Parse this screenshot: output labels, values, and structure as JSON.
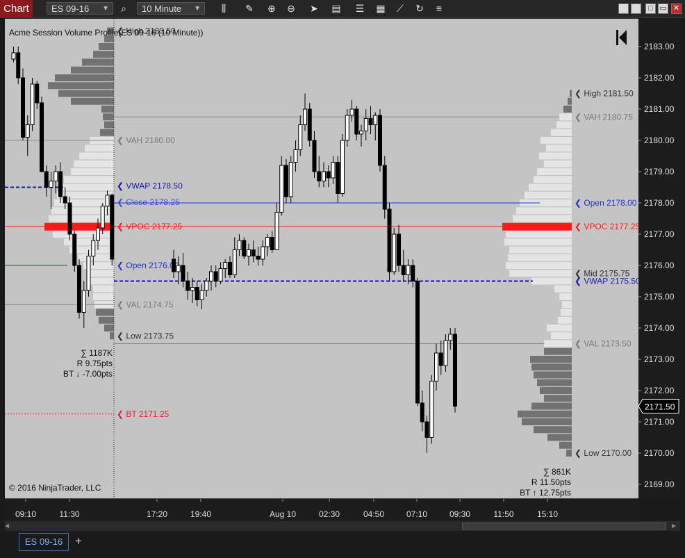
{
  "window": {
    "title": "Chart"
  },
  "toolbar": {
    "instrument": "ES 09-16",
    "interval": "10 Minute",
    "icons": [
      "search-icon",
      "bar-style-icon",
      "pencil-icon",
      "zoom-in-icon",
      "zoom-out-icon",
      "pointer-icon",
      "data-box-icon",
      "properties-icon",
      "strategies-icon",
      "chart-trader-icon",
      "reload-icon",
      "menu-icon"
    ],
    "window_buttons": [
      "minimize",
      "restore",
      "maximize",
      "close"
    ]
  },
  "chart": {
    "indicator_label": "Acme Session Volume Profile(ES 09-16 (10 Minute))",
    "copyright": "© 2016 NinjaTrader, LLC",
    "current_price": "2171.50",
    "colors": {
      "vpoc": "#ff1a1a",
      "vwap": "#1a1aa6",
      "open": "#2233cc",
      "va": "#7a7a7a",
      "low": "#222222",
      "bt": "#e0203a",
      "background": "#c4c4c4"
    },
    "left_profile": {
      "stats": [
        "∑ 1187K",
        "R 9.75pts",
        "BT ↓ -7.00pts"
      ],
      "labels": [
        "High 2183.50",
        "VAH 2180.00",
        "VWAP 2178.50",
        "Close 2178.25",
        "VPOC 2177.25",
        "Open 2176.00",
        "VAL 2174.75",
        "Low 2173.75",
        "BT 2171.25"
      ]
    },
    "right_profile": {
      "stats": [
        "∑ 861K",
        "R 11.50pts",
        "BT ↑ 12.75pts"
      ],
      "labels": [
        "High 2181.50",
        "VAH 2180.75",
        "Open 2178.00",
        "VPOC 2177.25",
        "Mid 2175.75",
        "VWAP 2175.50",
        "VAL 2173.50",
        "Low 2170.00"
      ]
    }
  },
  "chart_data": {
    "type": "candlestick",
    "instrument": "ES 09-16",
    "interval": "10 Minute",
    "ylim": [
      2168.75,
      2183.5
    ],
    "y_ticks": [
      "2169.00",
      "2170.00",
      "2171.00",
      "2172.00",
      "2173.00",
      "2174.00",
      "2175.00",
      "2176.00",
      "2177.00",
      "2178.00",
      "2179.00",
      "2180.00",
      "2181.00",
      "2182.00",
      "2183.00"
    ],
    "x_ticks": [
      "09:10",
      "11:30",
      "17:20",
      "19:40",
      "Aug 10",
      "02:30",
      "04:50",
      "07:10",
      "09:30",
      "11:50",
      "15:10"
    ],
    "price_lines": [
      {
        "label": "High 2183.50",
        "price": 2183.5,
        "session": "prior"
      },
      {
        "label": "VAH 2180.00",
        "price": 2180.0,
        "session": "prior"
      },
      {
        "label": "VWAP 2178.50",
        "price": 2178.5,
        "session": "prior"
      },
      {
        "label": "Close 2178.25",
        "price": 2178.25,
        "session": "prior"
      },
      {
        "label": "VPOC 2177.25",
        "price": 2177.25,
        "session": "prior"
      },
      {
        "label": "Open 2176.00",
        "price": 2176.0,
        "session": "prior"
      },
      {
        "label": "VAL 2174.75",
        "price": 2174.75,
        "session": "prior"
      },
      {
        "label": "Low 2173.75",
        "price": 2173.75,
        "session": "prior"
      },
      {
        "label": "BT 2171.25",
        "price": 2171.25,
        "session": "prior"
      },
      {
        "label": "High 2181.50",
        "price": 2181.5,
        "session": "current"
      },
      {
        "label": "VAH 2180.75",
        "price": 2180.75,
        "session": "current"
      },
      {
        "label": "Open 2178.00",
        "price": 2178.0,
        "session": "current"
      },
      {
        "label": "VPOC 2177.25",
        "price": 2177.25,
        "session": "current"
      },
      {
        "label": "Mid 2175.75",
        "price": 2175.75,
        "session": "current"
      },
      {
        "label": "VWAP 2175.50",
        "price": 2175.5,
        "session": "current"
      },
      {
        "label": "VAL 2173.50",
        "price": 2173.5,
        "session": "current"
      },
      {
        "label": "Low 2170.00",
        "price": 2170.0,
        "session": "current"
      }
    ],
    "left_profile": [
      {
        "p": 2183.5,
        "v": 10
      },
      {
        "p": 2183.25,
        "v": 14
      },
      {
        "p": 2183.0,
        "v": 22
      },
      {
        "p": 2182.75,
        "v": 30
      },
      {
        "p": 2182.5,
        "v": 46
      },
      {
        "p": 2182.25,
        "v": 62
      },
      {
        "p": 2182.0,
        "v": 85
      },
      {
        "p": 2181.75,
        "v": 95
      },
      {
        "p": 2181.5,
        "v": 80
      },
      {
        "p": 2181.25,
        "v": 62
      },
      {
        "p": 2181.0,
        "v": 18
      },
      {
        "p": 2180.75,
        "v": 16
      },
      {
        "p": 2180.5,
        "v": 14
      },
      {
        "p": 2180.25,
        "v": 20
      },
      {
        "p": 2180.0,
        "v": 35
      },
      {
        "p": 2179.75,
        "v": 42
      },
      {
        "p": 2179.5,
        "v": 50
      },
      {
        "p": 2179.25,
        "v": 58
      },
      {
        "p": 2179.0,
        "v": 62
      },
      {
        "p": 2178.75,
        "v": 72
      },
      {
        "p": 2178.5,
        "v": 78
      },
      {
        "p": 2178.25,
        "v": 82
      },
      {
        "p": 2178.0,
        "v": 86
      },
      {
        "p": 2177.75,
        "v": 90
      },
      {
        "p": 2177.5,
        "v": 94
      },
      {
        "p": 2177.25,
        "v": 100
      },
      {
        "p": 2177.0,
        "v": 88
      },
      {
        "p": 2176.75,
        "v": 72
      },
      {
        "p": 2176.5,
        "v": 64
      },
      {
        "p": 2176.25,
        "v": 52
      },
      {
        "p": 2176.0,
        "v": 44
      },
      {
        "p": 2175.75,
        "v": 38
      },
      {
        "p": 2175.5,
        "v": 34
      },
      {
        "p": 2175.25,
        "v": 30
      },
      {
        "p": 2175.0,
        "v": 30
      },
      {
        "p": 2174.75,
        "v": 28
      },
      {
        "p": 2174.5,
        "v": 26
      },
      {
        "p": 2174.25,
        "v": 22
      },
      {
        "p": 2174.0,
        "v": 14
      },
      {
        "p": 2173.75,
        "v": 6
      }
    ],
    "right_profile": [
      {
        "p": 2181.5,
        "v": 3
      },
      {
        "p": 2181.25,
        "v": 6
      },
      {
        "p": 2181.0,
        "v": 12
      },
      {
        "p": 2180.75,
        "v": 18
      },
      {
        "p": 2180.5,
        "v": 22
      },
      {
        "p": 2180.25,
        "v": 30
      },
      {
        "p": 2180.0,
        "v": 45
      },
      {
        "p": 2179.75,
        "v": 37
      },
      {
        "p": 2179.5,
        "v": 47
      },
      {
        "p": 2179.25,
        "v": 40
      },
      {
        "p": 2179.0,
        "v": 50
      },
      {
        "p": 2178.75,
        "v": 55
      },
      {
        "p": 2178.5,
        "v": 62
      },
      {
        "p": 2178.25,
        "v": 68
      },
      {
        "p": 2178.0,
        "v": 75
      },
      {
        "p": 2177.75,
        "v": 80
      },
      {
        "p": 2177.5,
        "v": 85
      },
      {
        "p": 2177.25,
        "v": 100
      },
      {
        "p": 2177.0,
        "v": 95
      },
      {
        "p": 2176.75,
        "v": 97
      },
      {
        "p": 2176.5,
        "v": 90
      },
      {
        "p": 2176.25,
        "v": 92
      },
      {
        "p": 2176.0,
        "v": 95
      },
      {
        "p": 2175.75,
        "v": 90
      },
      {
        "p": 2175.5,
        "v": 58
      },
      {
        "p": 2175.25,
        "v": 25
      },
      {
        "p": 2175.0,
        "v": 18
      },
      {
        "p": 2174.75,
        "v": 14
      },
      {
        "p": 2174.5,
        "v": 16
      },
      {
        "p": 2174.25,
        "v": 20
      },
      {
        "p": 2174.0,
        "v": 36
      },
      {
        "p": 2173.75,
        "v": 30
      },
      {
        "p": 2173.5,
        "v": 40
      },
      {
        "p": 2173.25,
        "v": 40
      },
      {
        "p": 2173.0,
        "v": 60
      },
      {
        "p": 2172.75,
        "v": 58
      },
      {
        "p": 2172.5,
        "v": 55
      },
      {
        "p": 2172.25,
        "v": 50
      },
      {
        "p": 2172.0,
        "v": 46
      },
      {
        "p": 2171.75,
        "v": 40
      },
      {
        "p": 2171.5,
        "v": 58
      },
      {
        "p": 2171.25,
        "v": 78
      },
      {
        "p": 2171.0,
        "v": 72
      },
      {
        "p": 2170.75,
        "v": 55
      },
      {
        "p": 2170.5,
        "v": 35
      },
      {
        "p": 2170.25,
        "v": 18
      },
      {
        "p": 2170.0,
        "v": 8
      }
    ],
    "candles": [
      [
        2182.6,
        2183.0,
        2182.5,
        2182.8
      ],
      [
        2182.8,
        2183.0,
        2181.8,
        2182.0
      ],
      [
        2182.0,
        2182.3,
        2180.0,
        2180.1
      ],
      [
        2180.1,
        2180.8,
        2179.5,
        2180.5
      ],
      [
        2180.5,
        2182.0,
        2180.3,
        2181.8
      ],
      [
        2181.8,
        2181.9,
        2181.0,
        2181.2
      ],
      [
        2181.2,
        2181.4,
        2179.0,
        2179.0
      ],
      [
        2179.0,
        2179.2,
        2178.2,
        2178.5
      ],
      [
        2178.5,
        2179.0,
        2177.8,
        2178.7
      ],
      [
        2178.7,
        2179.2,
        2178.3,
        2179.0
      ],
      [
        2179.0,
        2179.3,
        2178.0,
        2178.2
      ],
      [
        2178.2,
        2178.5,
        2177.8,
        2178.0
      ],
      [
        2178.0,
        2178.2,
        2176.8,
        2177.0
      ],
      [
        2177.0,
        2177.1,
        2175.8,
        2176.0
      ],
      [
        2176.0,
        2176.2,
        2174.3,
        2174.5
      ],
      [
        2174.5,
        2175.5,
        2174.0,
        2175.2
      ],
      [
        2175.2,
        2176.5,
        2175.0,
        2176.3
      ],
      [
        2176.3,
        2177.0,
        2176.0,
        2176.8
      ],
      [
        2176.8,
        2177.5,
        2176.5,
        2177.2
      ],
      [
        2177.2,
        2178.0,
        2177.0,
        2177.9
      ],
      [
        2177.9,
        2178.4,
        2177.6,
        2178.25
      ],
      [
        2178.25,
        2178.3,
        2176.0,
        2176.2
      ],
      [
        2176.2,
        2176.5,
        2175.6,
        2175.8
      ],
      [
        2175.8,
        2176.3,
        2175.4,
        2176.0
      ],
      [
        2176.0,
        2176.4,
        2175.3,
        2175.5
      ],
      [
        2175.5,
        2175.8,
        2174.9,
        2175.2
      ],
      [
        2175.2,
        2175.6,
        2174.8,
        2175.3
      ],
      [
        2175.3,
        2175.5,
        2174.7,
        2174.9
      ],
      [
        2174.9,
        2175.4,
        2174.6,
        2175.2
      ],
      [
        2175.2,
        2175.6,
        2175.0,
        2175.5
      ],
      [
        2175.5,
        2176.0,
        2175.2,
        2175.8
      ],
      [
        2175.8,
        2176.0,
        2175.3,
        2175.5
      ],
      [
        2175.5,
        2176.1,
        2175.4,
        2175.9
      ],
      [
        2175.9,
        2176.2,
        2175.6,
        2176.1
      ],
      [
        2176.1,
        2176.3,
        2175.6,
        2175.7
      ],
      [
        2175.7,
        2176.9,
        2175.6,
        2176.5
      ],
      [
        2176.5,
        2177.0,
        2176.3,
        2176.8
      ],
      [
        2176.8,
        2176.9,
        2176.2,
        2176.3
      ],
      [
        2176.3,
        2176.7,
        2176.0,
        2176.5
      ],
      [
        2176.5,
        2176.8,
        2176.1,
        2176.3
      ],
      [
        2176.3,
        2176.6,
        2176.0,
        2176.2
      ],
      [
        2176.2,
        2176.8,
        2176.0,
        2176.6
      ],
      [
        2176.6,
        2177.0,
        2176.3,
        2176.9
      ],
      [
        2176.9,
        2177.1,
        2176.4,
        2176.5
      ],
      [
        2176.5,
        2178.0,
        2176.5,
        2177.7
      ],
      [
        2177.7,
        2179.5,
        2177.6,
        2179.2
      ],
      [
        2179.2,
        2179.4,
        2178.0,
        2178.2
      ],
      [
        2178.2,
        2179.5,
        2178.0,
        2179.3
      ],
      [
        2179.3,
        2180.0,
        2179.0,
        2179.7
      ],
      [
        2179.7,
        2180.8,
        2179.5,
        2180.5
      ],
      [
        2180.5,
        2181.5,
        2180.3,
        2181.0
      ],
      [
        2181.0,
        2181.2,
        2179.8,
        2180.0
      ],
      [
        2180.0,
        2180.3,
        2178.8,
        2179.0
      ],
      [
        2179.0,
        2179.5,
        2178.5,
        2178.7
      ],
      [
        2178.7,
        2179.3,
        2178.5,
        2179.0
      ],
      [
        2179.0,
        2179.2,
        2178.5,
        2178.8
      ],
      [
        2178.8,
        2179.5,
        2178.6,
        2179.3
      ],
      [
        2179.3,
        2179.5,
        2178.0,
        2178.3
      ],
      [
        2178.3,
        2180.2,
        2178.2,
        2180.0
      ],
      [
        2180.0,
        2181.0,
        2179.8,
        2180.8
      ],
      [
        2180.8,
        2181.3,
        2180.6,
        2181.0
      ],
      [
        2181.0,
        2181.1,
        2180.0,
        2180.2
      ],
      [
        2180.2,
        2180.5,
        2179.8,
        2180.3
      ],
      [
        2180.3,
        2181.0,
        2180.0,
        2180.7
      ],
      [
        2180.7,
        2181.1,
        2180.2,
        2180.5
      ],
      [
        2180.5,
        2180.9,
        2180.0,
        2180.8
      ],
      [
        2180.8,
        2181.0,
        2179.0,
        2179.2
      ],
      [
        2179.2,
        2179.5,
        2177.5,
        2177.8
      ],
      [
        2177.8,
        2178.0,
        2175.5,
        2175.8
      ],
      [
        2175.8,
        2177.2,
        2175.7,
        2177.0
      ],
      [
        2177.0,
        2177.3,
        2175.8,
        2176.0
      ],
      [
        2176.0,
        2176.5,
        2175.5,
        2175.7
      ],
      [
        2175.7,
        2176.2,
        2175.4,
        2176.0
      ],
      [
        2176.0,
        2176.2,
        2175.3,
        2175.5
      ],
      [
        2175.5,
        2175.6,
        2171.5,
        2171.6
      ],
      [
        2171.6,
        2172.0,
        2170.7,
        2171.0
      ],
      [
        2171.0,
        2171.2,
        2170.0,
        2170.5
      ],
      [
        2170.5,
        2172.5,
        2170.3,
        2172.3
      ],
      [
        2172.3,
        2173.5,
        2172.0,
        2173.2
      ],
      [
        2173.2,
        2173.6,
        2172.5,
        2172.8
      ],
      [
        2172.8,
        2173.8,
        2172.6,
        2173.6
      ],
      [
        2173.6,
        2174.0,
        2173.3,
        2173.8
      ],
      [
        2173.8,
        2174.0,
        2171.3,
        2171.5
      ]
    ]
  }
}
